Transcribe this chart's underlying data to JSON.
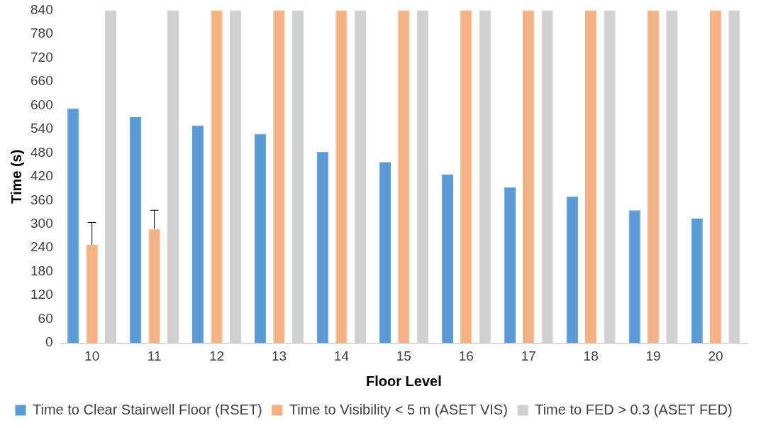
{
  "chart_data": {
    "type": "bar",
    "xlabel": "Floor Level",
    "ylabel": "Time (s)",
    "categories": [
      "10",
      "11",
      "12",
      "13",
      "14",
      "15",
      "16",
      "17",
      "18",
      "19",
      "20"
    ],
    "series": [
      {
        "name": "Time to Clear Stairwell Floor (RSET)",
        "color": "#5b9bd5",
        "values": [
          592,
          570,
          549,
          528,
          483,
          457,
          425,
          393,
          370,
          335,
          314
        ]
      },
      {
        "name": "Time to Visibility < 5 m (ASET VIS)",
        "color": "#f4b183",
        "values": [
          248,
          288,
          840,
          840,
          840,
          840,
          840,
          840,
          840,
          840,
          840
        ],
        "errors": [
          [
            248,
            304
          ],
          [
            288,
            335
          ],
          null,
          null,
          null,
          null,
          null,
          null,
          null,
          null,
          null
        ]
      },
      {
        "name": "Time to FED > 0.3 (ASET FED)",
        "color": "#d0d0d0",
        "values": [
          840,
          840,
          840,
          840,
          840,
          840,
          840,
          840,
          840,
          840,
          840
        ]
      }
    ],
    "ylim": [
      0,
      840
    ],
    "yticks": [
      0,
      60,
      120,
      180,
      240,
      300,
      360,
      420,
      480,
      540,
      600,
      660,
      720,
      780,
      840
    ],
    "grid": false,
    "legend": "bottom"
  }
}
